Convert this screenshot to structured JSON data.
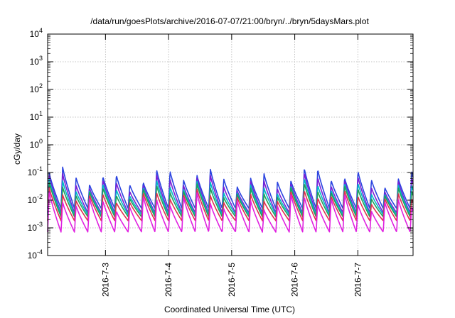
{
  "chart_data": {
    "type": "line",
    "title": "/data/run/goesPlots/archive/2016-07-07/21:00/bryn/../bryn/5daysMars.plot",
    "xlabel": "Coordinated Universal Time (UTC)",
    "ylabel": "cGy/day",
    "y_scale": "log",
    "ylim": [
      0.0001,
      10000
    ],
    "xlim": [
      "2016-07-02 02:00",
      "2016-07-07 21:00"
    ],
    "grid": true,
    "y_ticks": [
      {
        "base": "10",
        "exp": "-4"
      },
      {
        "base": "10",
        "exp": "-3"
      },
      {
        "base": "10",
        "exp": "-2"
      },
      {
        "base": "10",
        "exp": "-1"
      },
      {
        "base": "10",
        "exp": "0"
      },
      {
        "base": "10",
        "exp": "1"
      },
      {
        "base": "10",
        "exp": "2"
      },
      {
        "base": "10",
        "exp": "3"
      },
      {
        "base": "10",
        "exp": "4"
      }
    ],
    "x_ticks": [
      {
        "label": "2016-7-3",
        "date": "2016-07-03 00:00"
      },
      {
        "label": "2016-7-4",
        "date": "2016-07-04 00:00"
      },
      {
        "label": "2016-7-5",
        "date": "2016-07-05 00:00"
      },
      {
        "label": "2016-7-6",
        "date": "2016-07-06 00:00"
      },
      {
        "label": "2016-7-7",
        "date": "2016-07-07 00:00"
      }
    ],
    "series": [
      {
        "color": "#2b44e0",
        "peak": 0.07,
        "trough": 0.005
      },
      {
        "color": "#7a1fd6",
        "peak": 0.045,
        "trough": 0.0035
      },
      {
        "color": "#00b8c8",
        "peak": 0.03,
        "trough": 0.003
      },
      {
        "color": "#1fa05a",
        "peak": 0.022,
        "trough": 0.0025
      },
      {
        "color": "#e03050",
        "peak": 0.014,
        "trough": 0.0018
      },
      {
        "color": "#e020e0",
        "peak": 0.009,
        "trough": 0.0007
      }
    ],
    "cycles_per_day": 4.7
  }
}
